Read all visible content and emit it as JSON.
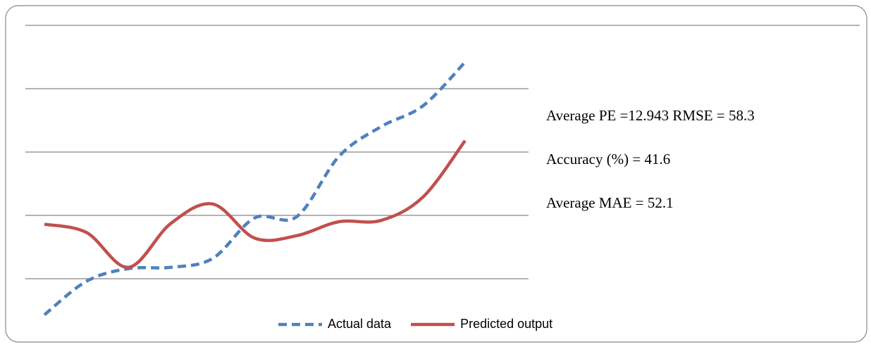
{
  "chart_data": {
    "type": "line",
    "categories": [
      null,
      null,
      null,
      null,
      null,
      null,
      null,
      null,
      null,
      null,
      null
    ],
    "series": [
      {
        "name": "Actual data",
        "color": "#4f81bd",
        "dash": true,
        "values": [
          0.43,
          0.96,
          1.16,
          1.18,
          1.32,
          1.96,
          1.98,
          2.93,
          3.4,
          3.73,
          4.42
        ]
      },
      {
        "name": "Predicted output",
        "color": "#c0504d",
        "dash": false,
        "values": [
          1.86,
          1.73,
          1.18,
          1.87,
          2.18,
          1.64,
          1.68,
          1.9,
          1.92,
          2.29,
          3.18
        ]
      }
    ],
    "ylim": [
      0,
      5
    ],
    "yticks": [
      1,
      2,
      3,
      4,
      5
    ],
    "grid": true,
    "legend": "bottom",
    "annotations": [
      "Average PE =12.943 RMSE = 58.3",
      "Accuracy (%) = 41.6",
      "Average MAE = 52.1"
    ]
  }
}
